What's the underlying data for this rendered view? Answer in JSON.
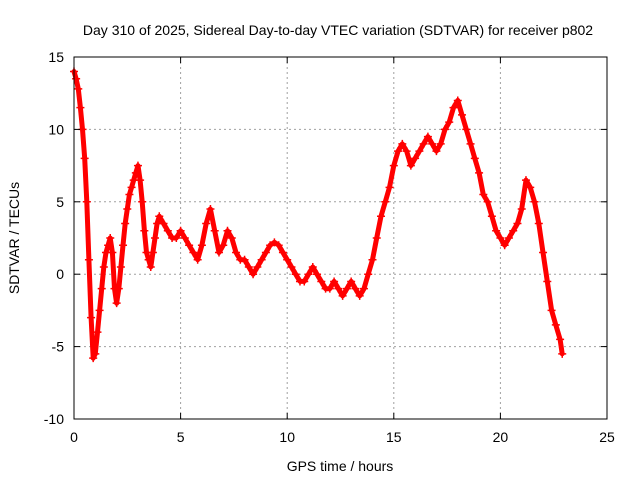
{
  "chart_data": {
    "type": "scatter",
    "title": "Day 310 of 2025, Sidereal Day-to-day VTEC variation (SDTVAR) for receiver p802",
    "xlabel": "GPS time / hours",
    "ylabel": "SDTVAR / TECUs",
    "xlim": [
      0,
      25
    ],
    "ylim": [
      -10,
      15
    ],
    "xticks": [
      0,
      5,
      10,
      15,
      20,
      25
    ],
    "yticks": [
      -10,
      -5,
      0,
      5,
      10,
      15
    ],
    "grid": true,
    "marker": "+",
    "series_color": "#ff0000",
    "series": [
      {
        "name": "SDTVAR",
        "x": [
          0.0,
          0.1,
          0.2,
          0.3,
          0.4,
          0.5,
          0.6,
          0.7,
          0.8,
          0.9,
          1.0,
          1.1,
          1.2,
          1.3,
          1.4,
          1.5,
          1.6,
          1.7,
          1.8,
          1.9,
          2.0,
          2.1,
          2.2,
          2.3,
          2.4,
          2.5,
          2.6,
          2.7,
          2.8,
          2.9,
          3.0,
          3.1,
          3.2,
          3.3,
          3.4,
          3.5,
          3.6,
          3.7,
          3.8,
          3.9,
          4.0,
          4.2,
          4.4,
          4.6,
          4.8,
          5.0,
          5.2,
          5.4,
          5.6,
          5.8,
          6.0,
          6.2,
          6.4,
          6.6,
          6.8,
          7.0,
          7.2,
          7.4,
          7.6,
          7.8,
          8.0,
          8.2,
          8.4,
          8.6,
          8.8,
          9.0,
          9.2,
          9.4,
          9.6,
          9.8,
          10.0,
          10.2,
          10.4,
          10.6,
          10.8,
          11.0,
          11.2,
          11.4,
          11.6,
          11.8,
          12.0,
          12.2,
          12.4,
          12.6,
          12.8,
          13.0,
          13.2,
          13.4,
          13.6,
          13.8,
          14.0,
          14.2,
          14.4,
          14.6,
          14.8,
          15.0,
          15.2,
          15.4,
          15.6,
          15.8,
          16.0,
          16.2,
          16.4,
          16.6,
          16.8,
          17.0,
          17.2,
          17.4,
          17.6,
          17.8,
          18.0,
          18.2,
          18.4,
          18.6,
          18.8,
          19.0,
          19.2,
          19.4,
          19.6,
          19.8,
          20.0,
          20.2,
          20.4,
          20.6,
          20.8,
          21.0,
          21.2,
          21.4,
          21.6,
          21.8,
          22.0,
          22.2,
          22.4,
          22.6,
          22.8,
          22.9
        ],
        "y": [
          14.0,
          13.5,
          12.8,
          11.5,
          10.0,
          8.0,
          5.0,
          1.0,
          -3.0,
          -5.8,
          -5.5,
          -4.0,
          -2.5,
          -1.0,
          0.5,
          1.5,
          2.0,
          2.5,
          1.5,
          -1.0,
          -2.0,
          -1.0,
          0.5,
          2.0,
          3.5,
          4.5,
          5.5,
          6.0,
          6.5,
          7.0,
          7.5,
          6.5,
          5.0,
          3.0,
          1.5,
          1.0,
          0.5,
          1.5,
          2.5,
          3.5,
          4.0,
          3.5,
          3.0,
          2.5,
          2.5,
          3.0,
          2.5,
          2.0,
          1.5,
          1.0,
          2.0,
          3.5,
          4.5,
          3.0,
          1.5,
          2.0,
          3.0,
          2.5,
          1.5,
          1.0,
          1.0,
          0.5,
          0.0,
          0.5,
          1.0,
          1.5,
          2.0,
          2.2,
          2.0,
          1.5,
          1.0,
          0.5,
          0.0,
          -0.5,
          -0.5,
          0.0,
          0.5,
          0.0,
          -0.5,
          -1.0,
          -1.0,
          -0.5,
          -1.0,
          -1.5,
          -1.0,
          -0.5,
          -1.0,
          -1.5,
          -1.0,
          0.0,
          1.0,
          2.5,
          4.0,
          5.0,
          6.0,
          7.5,
          8.5,
          9.0,
          8.5,
          7.5,
          8.0,
          8.5,
          9.0,
          9.5,
          9.0,
          8.5,
          9.0,
          10.0,
          10.5,
          11.5,
          12.0,
          11.0,
          10.0,
          9.0,
          8.0,
          7.0,
          5.5,
          5.0,
          4.0,
          3.0,
          2.5,
          2.0,
          2.5,
          3.0,
          3.5,
          4.5,
          6.5,
          6.0,
          5.0,
          3.5,
          1.5,
          -0.5,
          -2.5,
          -3.5,
          -4.5,
          -5.5
        ]
      }
    ]
  }
}
